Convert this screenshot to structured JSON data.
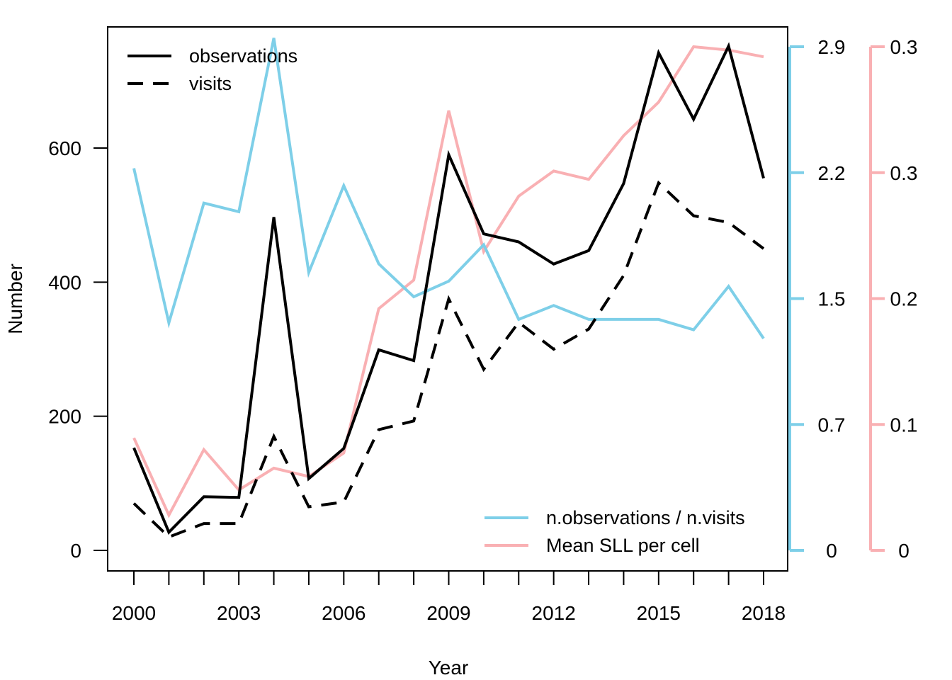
{
  "chart_data": {
    "type": "line",
    "xlabel": "Year",
    "ylabel": "Number",
    "x": [
      2000,
      2001,
      2002,
      2003,
      2004,
      2005,
      2006,
      2007,
      2008,
      2009,
      2010,
      2011,
      2012,
      2013,
      2014,
      2015,
      2016,
      2017,
      2018
    ],
    "x_tick_labels": [
      "2000",
      "2003",
      "2006",
      "2009",
      "2012",
      "2015",
      "2018"
    ],
    "left_axis": {
      "ylim": [
        -30,
        790
      ],
      "ticks": [
        0,
        200,
        400,
        600
      ],
      "tick_labels": [
        "0",
        "200",
        "400",
        "600"
      ]
    },
    "right_axis_ratio": {
      "ylim": [
        0,
        2.9
      ],
      "tick_labels": [
        "0",
        "0.7",
        "1.5",
        "2.2",
        "2.9"
      ],
      "color": "#7ecfe8"
    },
    "right_axis_sll": {
      "ylim": [
        0,
        0.3
      ],
      "tick_labels": [
        "0",
        "0.1",
        "0.2",
        "0.3",
        "0.3"
      ],
      "color": "#f9b0b3"
    },
    "series": [
      {
        "name": "observations",
        "axis": "left",
        "color": "#000000",
        "style": "solid",
        "values": [
          153,
          27,
          80,
          79,
          497,
          107,
          152,
          299,
          283,
          590,
          472,
          460,
          427,
          447,
          547,
          742,
          643,
          752,
          555
        ]
      },
      {
        "name": "visits",
        "axis": "left",
        "color": "#000000",
        "style": "dashed",
        "values": [
          70,
          20,
          40,
          40,
          170,
          65,
          72,
          180,
          193,
          375,
          270,
          340,
          300,
          330,
          410,
          548,
          499,
          489,
          450
        ]
      },
      {
        "name": "n.observations / n.visits",
        "axis": "ratio",
        "color": "#7ecfe8",
        "style": "solid",
        "values": [
          2.2,
          1.31,
          2.0,
          1.95,
          2.95,
          1.6,
          2.1,
          1.65,
          1.46,
          1.55,
          1.76,
          1.33,
          1.41,
          1.33,
          1.33,
          1.33,
          1.27,
          1.52,
          1.22
        ]
      },
      {
        "name": "Mean SLL per cell",
        "axis": "sll",
        "color": "#f9b0b3",
        "style": "solid",
        "values": [
          0.067,
          0.021,
          0.06,
          0.036,
          0.049,
          0.044,
          0.058,
          0.144,
          0.161,
          0.262,
          0.178,
          0.211,
          0.226,
          0.221,
          0.247,
          0.267,
          0.3,
          0.298,
          0.294
        ]
      }
    ],
    "legends": [
      {
        "position": "top-left",
        "items": [
          "observations",
          "visits"
        ]
      },
      {
        "position": "bottom-right",
        "items": [
          "n.observations / n.visits",
          "Mean SLL per cell"
        ]
      }
    ]
  }
}
